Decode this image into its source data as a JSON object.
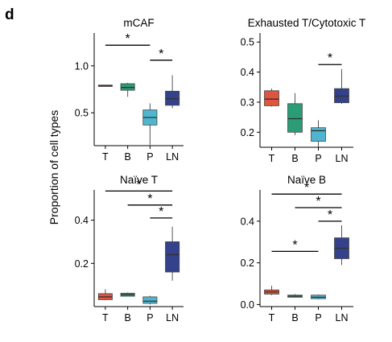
{
  "figure": {
    "panel_letter": "d",
    "ylabel": "Proportion of cell types"
  },
  "colors": {
    "T": "#e0533f",
    "B": "#2a9d76",
    "P": "#50b6cf",
    "LN": "#34418b"
  },
  "chart_data": [
    {
      "type": "box",
      "title": "mCAF",
      "categories": [
        "T",
        "B",
        "P",
        "LN"
      ],
      "ylim": [
        0.15,
        1.35
      ],
      "yticks": [
        0.5,
        1.0
      ],
      "ytick_labels": [
        "0.5",
        "1.0"
      ],
      "boxes": [
        {
          "cat": "T",
          "min": 0.78,
          "q1": 0.78,
          "median": 0.79,
          "q3": 0.795,
          "max": 0.795
        },
        {
          "cat": "B",
          "min": 0.67,
          "q1": 0.74,
          "median": 0.77,
          "q3": 0.81,
          "max": 0.82
        },
        {
          "cat": "P",
          "min": 0.16,
          "q1": 0.37,
          "median": 0.45,
          "q3": 0.53,
          "max": 0.6
        },
        {
          "cat": "LN",
          "min": 0.55,
          "q1": 0.58,
          "median": 0.65,
          "q3": 0.73,
          "max": 0.9
        }
      ],
      "significance": [
        {
          "from": "T",
          "to": "P",
          "y": 1.22,
          "label": "*"
        },
        {
          "from": "P",
          "to": "LN",
          "y": 1.06,
          "label": "*"
        }
      ]
    },
    {
      "type": "box",
      "title": "Exhausted T/Cytotoxic T",
      "categories": [
        "T",
        "B",
        "P",
        "LN"
      ],
      "ylim": [
        0.15,
        0.53
      ],
      "yticks": [
        0.2,
        0.3,
        0.4,
        0.5
      ],
      "ytick_labels": [
        "0.2",
        "0.3",
        "0.4",
        "0.5"
      ],
      "boxes": [
        {
          "cat": "T",
          "min": 0.285,
          "q1": 0.288,
          "median": 0.31,
          "q3": 0.338,
          "max": 0.345
        },
        {
          "cat": "B",
          "min": 0.19,
          "q1": 0.2,
          "median": 0.245,
          "q3": 0.295,
          "max": 0.33
        },
        {
          "cat": "P",
          "min": 0.15,
          "q1": 0.17,
          "median": 0.205,
          "q3": 0.215,
          "max": 0.24
        },
        {
          "cat": "LN",
          "min": 0.295,
          "q1": 0.298,
          "median": 0.32,
          "q3": 0.345,
          "max": 0.41
        }
      ],
      "significance": [
        {
          "from": "P",
          "to": "LN",
          "y": 0.425,
          "label": "*"
        }
      ]
    },
    {
      "type": "box",
      "title": "Naïve T",
      "categories": [
        "T",
        "B",
        "P",
        "LN"
      ],
      "ylim": [
        0.0,
        0.54
      ],
      "yticks": [
        0.2,
        0.4
      ],
      "ytick_labels": [
        "0.2",
        "0.4"
      ],
      "boxes": [
        {
          "cat": "T",
          "min": 0.03,
          "q1": 0.032,
          "median": 0.045,
          "q3": 0.06,
          "max": 0.08
        },
        {
          "cat": "B",
          "min": 0.047,
          "q1": 0.048,
          "median": 0.055,
          "q3": 0.062,
          "max": 0.065
        },
        {
          "cat": "P",
          "min": 0.01,
          "q1": 0.015,
          "median": 0.025,
          "q3": 0.045,
          "max": 0.05
        },
        {
          "cat": "LN",
          "min": 0.12,
          "q1": 0.16,
          "median": 0.24,
          "q3": 0.3,
          "max": 0.37
        }
      ],
      "significance": [
        {
          "from": "T",
          "to": "LN",
          "y": 0.535,
          "label": "*"
        },
        {
          "from": "B",
          "to": "LN",
          "y": 0.47,
          "label": "*"
        },
        {
          "from": "P",
          "to": "LN",
          "y": 0.41,
          "label": "*"
        }
      ]
    },
    {
      "type": "box",
      "title": "Naïve B",
      "categories": [
        "T",
        "B",
        "P",
        "LN"
      ],
      "ylim": [
        -0.01,
        0.55
      ],
      "yticks": [
        0.0,
        0.2,
        0.4
      ],
      "ytick_labels": [
        "0.0",
        "0.2",
        "0.4"
      ],
      "boxes": [
        {
          "cat": "T",
          "min": 0.045,
          "q1": 0.05,
          "median": 0.06,
          "q3": 0.07,
          "max": 0.09
        },
        {
          "cat": "B",
          "min": 0.033,
          "q1": 0.035,
          "median": 0.04,
          "q3": 0.045,
          "max": 0.05
        },
        {
          "cat": "P",
          "min": 0.025,
          "q1": 0.028,
          "median": 0.035,
          "q3": 0.045,
          "max": 0.048
        },
        {
          "cat": "LN",
          "min": 0.19,
          "q1": 0.22,
          "median": 0.27,
          "q3": 0.32,
          "max": 0.38
        }
      ],
      "significance": [
        {
          "from": "T",
          "to": "LN",
          "y": 0.53,
          "label": "*"
        },
        {
          "from": "B",
          "to": "LN",
          "y": 0.465,
          "label": "*"
        },
        {
          "from": "P",
          "to": "LN",
          "y": 0.4,
          "label": "*"
        },
        {
          "from": "T",
          "to": "P",
          "y": 0.255,
          "label": "*"
        }
      ]
    }
  ]
}
